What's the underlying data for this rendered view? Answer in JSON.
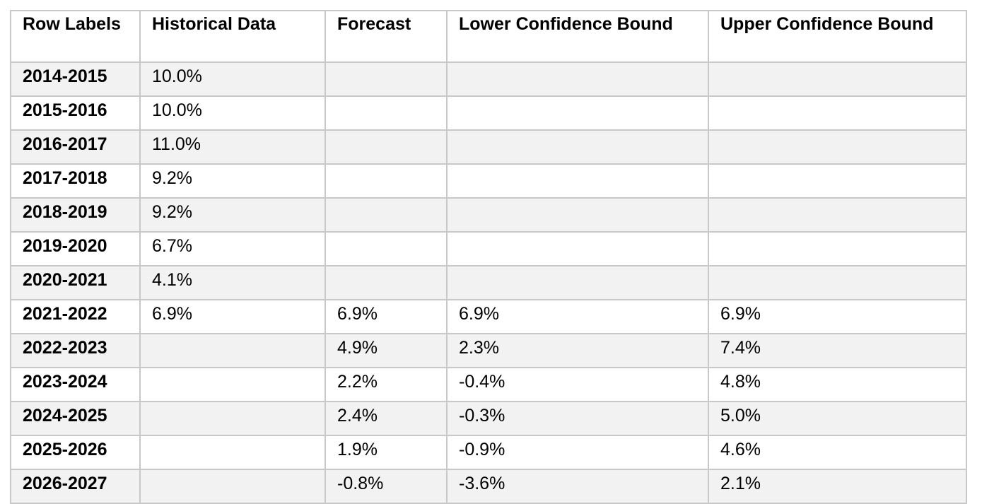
{
  "table": {
    "headers": [
      "Row Labels",
      "Historical Data",
      "Forecast",
      "Lower Confidence Bound",
      "Upper Confidence Bound"
    ],
    "rows": [
      [
        "2014-2015",
        "10.0%",
        "",
        "",
        ""
      ],
      [
        "2015-2016",
        "10.0%",
        "",
        "",
        ""
      ],
      [
        "2016-2017",
        "11.0%",
        "",
        "",
        ""
      ],
      [
        "2017-2018",
        "9.2%",
        "",
        "",
        ""
      ],
      [
        "2018-2019",
        "9.2%",
        "",
        "",
        ""
      ],
      [
        "2019-2020",
        "6.7%",
        "",
        "",
        ""
      ],
      [
        "2020-2021",
        "4.1%",
        "",
        "",
        ""
      ],
      [
        "2021-2022",
        "6.9%",
        "6.9%",
        "6.9%",
        "6.9%"
      ],
      [
        "2022-2023",
        "",
        "4.9%",
        "2.3%",
        "7.4%"
      ],
      [
        "2023-2024",
        "",
        "2.2%",
        "-0.4%",
        "4.8%"
      ],
      [
        "2024-2025",
        "",
        "2.4%",
        "-0.3%",
        "5.0%"
      ],
      [
        "2025-2026",
        "",
        "1.9%",
        "-0.9%",
        "4.6%"
      ],
      [
        "2026-2027",
        "",
        "-0.8%",
        "-3.6%",
        "2.1%"
      ]
    ]
  },
  "colors": {
    "shaded_row": "#f2f2f2",
    "grid_line": "#c8c8c8"
  }
}
